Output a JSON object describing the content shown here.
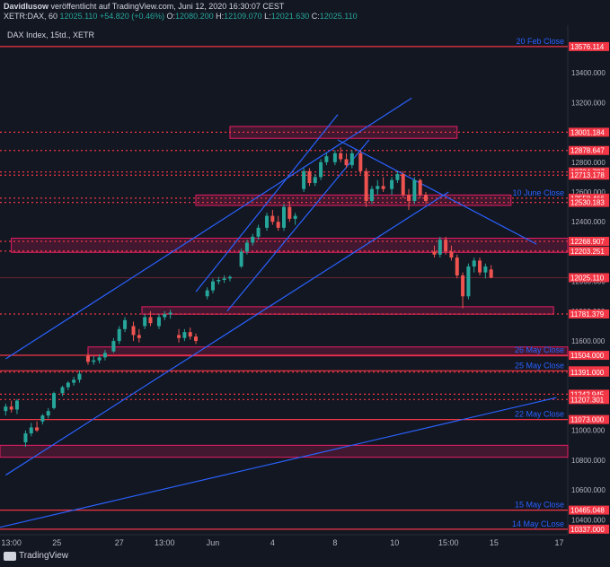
{
  "header": {
    "line1_prefix": "DavidIusow",
    "line1_suffix": " veröffentlicht auf TradingView.com, Juni 12, 2020 16:30:07 CEST",
    "symbol": "XETR:DAX, 60",
    "last": "12025.110",
    "change": "+54.820 (+0.46%)",
    "open_label": "O:",
    "open": "12080.200",
    "high_label": "H:",
    "high": "12109.070",
    "low_label": "L:",
    "low": "12021.630",
    "close_label": "C:",
    "close": "12025.110"
  },
  "chart_title": "DAX Index, 15td., XETR",
  "footer": {
    "brand": "TradingView"
  },
  "colors": {
    "up": "#26a69a",
    "down": "#ef5350",
    "level": "#f23645",
    "zone_fill": "#e91e63",
    "trendline": "#2962ff",
    "annotation": "#2962ff"
  },
  "chart_data": {
    "type": "candlestick",
    "ylim": [
      10300,
      13720
    ],
    "y_ticks": [
      {
        "label": "13400.000",
        "value": 13400
      },
      {
        "label": "13200.000",
        "value": 13200
      },
      {
        "label": "12800.000",
        "value": 12800
      },
      {
        "label": "12600.000",
        "value": 12600
      },
      {
        "label": "12400.000",
        "value": 12400
      },
      {
        "label": "12200.000",
        "value": 12200
      },
      {
        "label": "12000.000",
        "value": 12000
      },
      {
        "label": "11800.000",
        "value": 11800
      },
      {
        "label": "11600.000",
        "value": 11600
      },
      {
        "label": "11200.000",
        "value": 11200
      },
      {
        "label": "11000.000",
        "value": 11000
      },
      {
        "label": "10800.000",
        "value": 10800
      },
      {
        "label": "10600.000",
        "value": 10600
      },
      {
        "label": "10400.000",
        "value": 10400
      }
    ],
    "x_ticks": [
      {
        "label": "13:00",
        "x": 0.02
      },
      {
        "label": "25",
        "x": 0.1
      },
      {
        "label": "27",
        "x": 0.21
      },
      {
        "label": "13:00",
        "x": 0.29
      },
      {
        "label": "Jun",
        "x": 0.375
      },
      {
        "label": "4",
        "x": 0.48
      },
      {
        "label": "8",
        "x": 0.59
      },
      {
        "label": "10",
        "x": 0.695
      },
      {
        "label": "15:00",
        "x": 0.79
      },
      {
        "label": "15",
        "x": 0.87
      },
      {
        "label": "17",
        "x": 0.985
      }
    ],
    "price_labels": [
      {
        "label": "13576.114",
        "value": 13576.114,
        "style": "solid"
      },
      {
        "label": "13001.184",
        "value": 13001.184,
        "style": "dashed"
      },
      {
        "label": "12878.647",
        "value": 12878.647,
        "style": "dashed"
      },
      {
        "label": "12734.727",
        "value": 12734.727,
        "style": "dashed"
      },
      {
        "label": "12713.178",
        "value": 12713.178,
        "style": "dashed"
      },
      {
        "label": "12558.466",
        "value": 12558.466,
        "style": "dashed"
      },
      {
        "label": "12530.183",
        "value": 12530.183,
        "style": "dashed"
      },
      {
        "label": "12268.907",
        "value": 12268.907,
        "style": "dashed"
      },
      {
        "label": "12203.251",
        "value": 12203.251,
        "style": "dashed"
      },
      {
        "label": "12025.110",
        "value": 12025.11,
        "style": "current"
      },
      {
        "label": "11781.379",
        "value": 11781.379,
        "style": "dashed"
      },
      {
        "label": "11504.000",
        "value": 11504.0,
        "style": "solid"
      },
      {
        "label": "11400.000",
        "value": 11400.0,
        "style": "solid"
      },
      {
        "label": "11391.000",
        "value": 11391.0,
        "style": "dashed"
      },
      {
        "label": "11242.945",
        "value": 11242.945,
        "style": "dashed"
      },
      {
        "label": "11207.301",
        "value": 11207.301,
        "style": "dashed"
      },
      {
        "label": "11073.000",
        "value": 11073.0,
        "style": "solid"
      },
      {
        "label": "10465.048",
        "value": 10465.048,
        "style": "solid"
      },
      {
        "label": "10337.000",
        "value": 10337.0,
        "style": "solid"
      }
    ],
    "annotations": [
      {
        "label": "20 Feb Close",
        "value": 13576.114
      },
      {
        "label": "10 June Close",
        "value": 12558.466
      },
      {
        "label": "26 May Close",
        "value": 11504.0
      },
      {
        "label": "25 May Close",
        "value": 11400.0
      },
      {
        "label": "22 May Close",
        "value": 11073.0
      },
      {
        "label": "15 May Close",
        "value": 10465.048
      },
      {
        "label": "14 May CLose",
        "value": 10337.0
      }
    ],
    "zones": [
      {
        "y1": 13040,
        "y2": 12960,
        "x1": 0.405,
        "x2": 0.805
      },
      {
        "y1": 12580,
        "y2": 12510,
        "x1": 0.345,
        "x2": 0.9
      },
      {
        "y1": 12290,
        "y2": 12195,
        "x1": 0.02,
        "x2": 1.0
      },
      {
        "y1": 11830,
        "y2": 11780,
        "x1": 0.25,
        "x2": 0.975
      },
      {
        "y1": 11560,
        "y2": 11500,
        "x1": 0.155,
        "x2": 1.0
      },
      {
        "y1": 10900,
        "y2": 10820,
        "x1": 0.0,
        "x2": 1.0
      }
    ],
    "trendlines": [
      {
        "x1": 0.01,
        "y1": 11480,
        "x2": 0.725,
        "y2": 13230
      },
      {
        "x1": 0.01,
        "y1": 10700,
        "x2": 0.79,
        "y2": 12600
      },
      {
        "x1": 0.345,
        "y1": 11930,
        "x2": 0.595,
        "y2": 13120
      },
      {
        "x1": 0.4,
        "y1": 11800,
        "x2": 0.65,
        "y2": 12950
      },
      {
        "x1": 0.595,
        "y1": 12950,
        "x2": 0.945,
        "y2": 12250
      },
      {
        "x1": 0.0,
        "y1": 10350,
        "x2": 0.98,
        "y2": 11220
      }
    ],
    "candles": [
      {
        "x": 0.01,
        "o": 11130,
        "h": 11180,
        "l": 11100,
        "c": 11160
      },
      {
        "x": 0.02,
        "o": 11160,
        "h": 11200,
        "l": 11120,
        "c": 11140
      },
      {
        "x": 0.03,
        "o": 11140,
        "h": 11210,
        "l": 11110,
        "c": 11200
      },
      {
        "x": 0.045,
        "o": 10920,
        "h": 11000,
        "l": 10890,
        "c": 10980
      },
      {
        "x": 0.055,
        "o": 10980,
        "h": 11050,
        "l": 10960,
        "c": 11020
      },
      {
        "x": 0.065,
        "o": 11020,
        "h": 11060,
        "l": 10990,
        "c": 11000
      },
      {
        "x": 0.075,
        "o": 11060,
        "h": 11110,
        "l": 11040,
        "c": 11100
      },
      {
        "x": 0.085,
        "o": 11100,
        "h": 11150,
        "l": 11080,
        "c": 11130
      },
      {
        "x": 0.095,
        "o": 11150,
        "h": 11260,
        "l": 11140,
        "c": 11250
      },
      {
        "x": 0.11,
        "o": 11250,
        "h": 11300,
        "l": 11230,
        "c": 11290
      },
      {
        "x": 0.12,
        "o": 11290,
        "h": 11330,
        "l": 11270,
        "c": 11320
      },
      {
        "x": 0.13,
        "o": 11320,
        "h": 11360,
        "l": 11300,
        "c": 11340
      },
      {
        "x": 0.14,
        "o": 11340,
        "h": 11400,
        "l": 11320,
        "c": 11380
      },
      {
        "x": 0.155,
        "o": 11500,
        "h": 11520,
        "l": 11440,
        "c": 11460
      },
      {
        "x": 0.165,
        "o": 11460,
        "h": 11500,
        "l": 11440,
        "c": 11470
      },
      {
        "x": 0.175,
        "o": 11470,
        "h": 11510,
        "l": 11450,
        "c": 11490
      },
      {
        "x": 0.185,
        "o": 11490,
        "h": 11540,
        "l": 11470,
        "c": 11520
      },
      {
        "x": 0.2,
        "o": 11530,
        "h": 11620,
        "l": 11520,
        "c": 11600
      },
      {
        "x": 0.21,
        "o": 11600,
        "h": 11700,
        "l": 11580,
        "c": 11680
      },
      {
        "x": 0.22,
        "o": 11680,
        "h": 11760,
        "l": 11660,
        "c": 11740
      },
      {
        "x": 0.235,
        "o": 11700,
        "h": 11730,
        "l": 11600,
        "c": 11640
      },
      {
        "x": 0.245,
        "o": 11640,
        "h": 11680,
        "l": 11590,
        "c": 11620
      },
      {
        "x": 0.255,
        "o": 11700,
        "h": 11780,
        "l": 11680,
        "c": 11760
      },
      {
        "x": 0.265,
        "o": 11760,
        "h": 11800,
        "l": 11700,
        "c": 11720
      },
      {
        "x": 0.28,
        "o": 11700,
        "h": 11780,
        "l": 11680,
        "c": 11760
      },
      {
        "x": 0.29,
        "o": 11760,
        "h": 11800,
        "l": 11740,
        "c": 11780
      },
      {
        "x": 0.3,
        "o": 11780,
        "h": 11810,
        "l": 11750,
        "c": 11790
      },
      {
        "x": 0.315,
        "o": 11640,
        "h": 11680,
        "l": 11590,
        "c": 11620
      },
      {
        "x": 0.325,
        "o": 11620,
        "h": 11680,
        "l": 11600,
        "c": 11660
      },
      {
        "x": 0.335,
        "o": 11660,
        "h": 11690,
        "l": 11610,
        "c": 11630
      },
      {
        "x": 0.345,
        "o": 11630,
        "h": 11650,
        "l": 11580,
        "c": 11600
      },
      {
        "x": 0.365,
        "o": 11900,
        "h": 11960,
        "l": 11880,
        "c": 11940
      },
      {
        "x": 0.375,
        "o": 11940,
        "h": 12020,
        "l": 11920,
        "c": 12000
      },
      {
        "x": 0.385,
        "o": 12000,
        "h": 12030,
        "l": 11980,
        "c": 12010
      },
      {
        "x": 0.395,
        "o": 12010,
        "h": 12040,
        "l": 11990,
        "c": 12020
      },
      {
        "x": 0.405,
        "o": 12020,
        "h": 12040,
        "l": 12000,
        "c": 12030
      },
      {
        "x": 0.425,
        "o": 12100,
        "h": 12220,
        "l": 12090,
        "c": 12200
      },
      {
        "x": 0.435,
        "o": 12200,
        "h": 12280,
        "l": 12180,
        "c": 12260
      },
      {
        "x": 0.445,
        "o": 12260,
        "h": 12320,
        "l": 12240,
        "c": 12300
      },
      {
        "x": 0.455,
        "o": 12300,
        "h": 12380,
        "l": 12280,
        "c": 12360
      },
      {
        "x": 0.47,
        "o": 12360,
        "h": 12460,
        "l": 12340,
        "c": 12440
      },
      {
        "x": 0.48,
        "o": 12440,
        "h": 12480,
        "l": 12380,
        "c": 12400
      },
      {
        "x": 0.49,
        "o": 12400,
        "h": 12440,
        "l": 12340,
        "c": 12360
      },
      {
        "x": 0.5,
        "o": 12360,
        "h": 12520,
        "l": 12340,
        "c": 12500
      },
      {
        "x": 0.51,
        "o": 12500,
        "h": 12540,
        "l": 12400,
        "c": 12420
      },
      {
        "x": 0.52,
        "o": 12420,
        "h": 12460,
        "l": 12380,
        "c": 12440
      },
      {
        "x": 0.535,
        "o": 12620,
        "h": 12760,
        "l": 12600,
        "c": 12740
      },
      {
        "x": 0.545,
        "o": 12740,
        "h": 12760,
        "l": 12640,
        "c": 12660
      },
      {
        "x": 0.555,
        "o": 12660,
        "h": 12720,
        "l": 12640,
        "c": 12700
      },
      {
        "x": 0.565,
        "o": 12700,
        "h": 12820,
        "l": 12680,
        "c": 12800
      },
      {
        "x": 0.575,
        "o": 12800,
        "h": 12860,
        "l": 12780,
        "c": 12840
      },
      {
        "x": 0.59,
        "o": 12800,
        "h": 12880,
        "l": 12780,
        "c": 12860
      },
      {
        "x": 0.6,
        "o": 12860,
        "h": 12900,
        "l": 12800,
        "c": 12820
      },
      {
        "x": 0.61,
        "o": 12820,
        "h": 12860,
        "l": 12760,
        "c": 12780
      },
      {
        "x": 0.62,
        "o": 12780,
        "h": 12880,
        "l": 12760,
        "c": 12860
      },
      {
        "x": 0.635,
        "o": 12860,
        "h": 12880,
        "l": 12720,
        "c": 12740
      },
      {
        "x": 0.645,
        "o": 12740,
        "h": 12760,
        "l": 12500,
        "c": 12540
      },
      {
        "x": 0.655,
        "o": 12540,
        "h": 12640,
        "l": 12520,
        "c": 12620
      },
      {
        "x": 0.665,
        "o": 12620,
        "h": 12680,
        "l": 12580,
        "c": 12640
      },
      {
        "x": 0.675,
        "o": 12640,
        "h": 12700,
        "l": 12600,
        "c": 12620
      },
      {
        "x": 0.69,
        "o": 12620,
        "h": 12700,
        "l": 12580,
        "c": 12680
      },
      {
        "x": 0.7,
        "o": 12680,
        "h": 12740,
        "l": 12660,
        "c": 12720
      },
      {
        "x": 0.71,
        "o": 12720,
        "h": 12740,
        "l": 12560,
        "c": 12580
      },
      {
        "x": 0.72,
        "o": 12580,
        "h": 12620,
        "l": 12480,
        "c": 12540
      },
      {
        "x": 0.73,
        "o": 12540,
        "h": 12700,
        "l": 12520,
        "c": 12680
      },
      {
        "x": 0.74,
        "o": 12680,
        "h": 12690,
        "l": 12560,
        "c": 12580
      },
      {
        "x": 0.75,
        "o": 12580,
        "h": 12600,
        "l": 12520,
        "c": 12540
      },
      {
        "x": 0.765,
        "o": 12200,
        "h": 12240,
        "l": 12160,
        "c": 12180
      },
      {
        "x": 0.775,
        "o": 12180,
        "h": 12300,
        "l": 12160,
        "c": 12280
      },
      {
        "x": 0.785,
        "o": 12280,
        "h": 12300,
        "l": 12180,
        "c": 12200
      },
      {
        "x": 0.795,
        "o": 12200,
        "h": 12240,
        "l": 12140,
        "c": 12160
      },
      {
        "x": 0.805,
        "o": 12160,
        "h": 12180,
        "l": 12020,
        "c": 12040
      },
      {
        "x": 0.815,
        "o": 12040,
        "h": 12060,
        "l": 11820,
        "c": 11900
      },
      {
        "x": 0.825,
        "o": 11900,
        "h": 12120,
        "l": 11880,
        "c": 12100
      },
      {
        "x": 0.835,
        "o": 12100,
        "h": 12160,
        "l": 12060,
        "c": 12140
      },
      {
        "x": 0.845,
        "o": 12140,
        "h": 12160,
        "l": 12040,
        "c": 12060
      },
      {
        "x": 0.855,
        "o": 12060,
        "h": 12120,
        "l": 12020,
        "c": 12100
      },
      {
        "x": 0.865,
        "o": 12080,
        "h": 12109,
        "l": 12021,
        "c": 12025
      }
    ]
  }
}
